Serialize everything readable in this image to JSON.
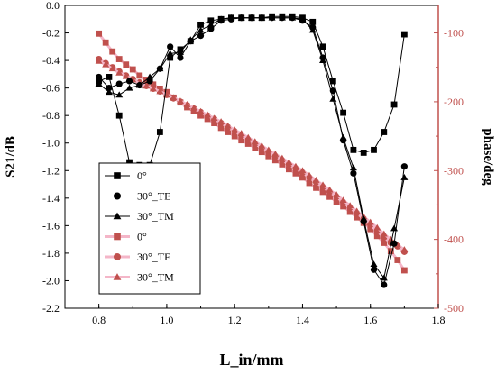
{
  "chart_data": {
    "type": "line",
    "xlabel": "L_in/mm",
    "ylabel_left": "S21/dB",
    "ylabel_right": "phase/deg",
    "xlim": [
      0.7,
      1.8
    ],
    "ylim_left": [
      -2.2,
      0.0
    ],
    "ylim_right": [
      -500,
      -60
    ],
    "x_ticks": [
      "0.8",
      "1.0",
      "1.2",
      "1.4",
      "1.6",
      "1.8"
    ],
    "y_left_ticks": [
      "0.0",
      "-0.2",
      "-0.4",
      "-0.6",
      "-0.8",
      "-1.0",
      "-1.2",
      "-1.4",
      "-1.6",
      "-1.8",
      "-2.0",
      "-2.2"
    ],
    "y_right_ticks": [
      "-100",
      "-200",
      "-300",
      "-400",
      "-500"
    ],
    "legend_position": "lower-left",
    "colors": {
      "s21": "#000000",
      "phase": "#c0504d",
      "phase_line": "#f4b6c8",
      "right_axis": "#c0504d"
    },
    "series": [
      {
        "name": "0°",
        "axis": "left",
        "marker": "square",
        "x": [
          0.8,
          0.83,
          0.86,
          0.89,
          0.92,
          0.95,
          0.98,
          1.01,
          1.04,
          1.07,
          1.1,
          1.13,
          1.16,
          1.19,
          1.22,
          1.25,
          1.28,
          1.31,
          1.34,
          1.37,
          1.4,
          1.43,
          1.46,
          1.49,
          1.52,
          1.55,
          1.58,
          1.61,
          1.64,
          1.67,
          1.7
        ],
        "values": [
          -0.55,
          -0.52,
          -0.8,
          -1.14,
          -1.16,
          -1.16,
          -0.92,
          -0.38,
          -0.32,
          -0.26,
          -0.14,
          -0.11,
          -0.1,
          -0.09,
          -0.09,
          -0.09,
          -0.09,
          -0.08,
          -0.08,
          -0.08,
          -0.09,
          -0.12,
          -0.3,
          -0.55,
          -0.78,
          -1.05,
          -1.07,
          -1.05,
          -0.92,
          -0.72,
          -0.21
        ]
      },
      {
        "name": "30°_TE",
        "axis": "left",
        "marker": "circle",
        "x": [
          0.8,
          0.83,
          0.86,
          0.89,
          0.92,
          0.95,
          0.98,
          1.01,
          1.04,
          1.07,
          1.1,
          1.13,
          1.16,
          1.19,
          1.22,
          1.25,
          1.28,
          1.31,
          1.34,
          1.37,
          1.4,
          1.43,
          1.46,
          1.49,
          1.52,
          1.55,
          1.58,
          1.61,
          1.64,
          1.67,
          1.7
        ],
        "values": [
          -0.52,
          -0.6,
          -0.57,
          -0.55,
          -0.58,
          -0.55,
          -0.46,
          -0.3,
          -0.38,
          -0.26,
          -0.22,
          -0.17,
          -0.11,
          -0.1,
          -0.09,
          -0.09,
          -0.09,
          -0.09,
          -0.09,
          -0.09,
          -0.11,
          -0.16,
          -0.38,
          -0.62,
          -0.98,
          -1.22,
          -1.57,
          -1.92,
          -2.03,
          -1.73,
          -1.17
        ]
      },
      {
        "name": "30°_TM",
        "axis": "left",
        "marker": "triangle",
        "x": [
          0.8,
          0.83,
          0.86,
          0.89,
          0.92,
          0.95,
          0.98,
          1.01,
          1.04,
          1.07,
          1.1,
          1.13,
          1.16,
          1.19,
          1.22,
          1.25,
          1.28,
          1.31,
          1.34,
          1.37,
          1.4,
          1.43,
          1.46,
          1.49,
          1.52,
          1.55,
          1.58,
          1.61,
          1.64,
          1.67,
          1.7
        ],
        "values": [
          -0.57,
          -0.63,
          -0.65,
          -0.6,
          -0.58,
          -0.52,
          -0.46,
          -0.35,
          -0.34,
          -0.25,
          -0.18,
          -0.14,
          -0.1,
          -0.09,
          -0.09,
          -0.09,
          -0.09,
          -0.09,
          -0.09,
          -0.09,
          -0.1,
          -0.18,
          -0.4,
          -0.68,
          -0.96,
          -1.18,
          -1.55,
          -1.88,
          -1.98,
          -1.62,
          -1.25
        ]
      },
      {
        "name": "0°",
        "axis": "right",
        "marker": "square",
        "x": [
          0.8,
          0.82,
          0.84,
          0.86,
          0.88,
          0.9,
          0.92,
          0.94,
          0.96,
          0.98,
          1.0,
          1.02,
          1.04,
          1.06,
          1.08,
          1.1,
          1.12,
          1.14,
          1.16,
          1.18,
          1.2,
          1.22,
          1.24,
          1.26,
          1.28,
          1.3,
          1.32,
          1.34,
          1.36,
          1.38,
          1.4,
          1.42,
          1.44,
          1.46,
          1.48,
          1.5,
          1.52,
          1.54,
          1.56,
          1.58,
          1.6,
          1.62,
          1.64,
          1.66,
          1.68,
          1.7
        ],
        "values": [
          -101,
          -114,
          -127,
          -138,
          -146,
          -153,
          -162,
          -168,
          -175,
          -181,
          -186,
          -194,
          -201,
          -208,
          -214,
          -220,
          -225,
          -231,
          -238,
          -244,
          -250,
          -256,
          -261,
          -267,
          -273,
          -279,
          -285,
          -291,
          -298,
          -304,
          -310,
          -318,
          -325,
          -331,
          -338,
          -345,
          -352,
          -360,
          -368,
          -376,
          -385,
          -395,
          -405,
          -417,
          -430,
          -445
        ]
      },
      {
        "name": "30°_TE",
        "axis": "right",
        "marker": "circle",
        "x": [
          0.8,
          0.82,
          0.84,
          0.86,
          0.88,
          0.9,
          0.92,
          0.94,
          0.96,
          0.98,
          1.0,
          1.02,
          1.04,
          1.06,
          1.08,
          1.1,
          1.12,
          1.14,
          1.16,
          1.18,
          1.2,
          1.22,
          1.24,
          1.26,
          1.28,
          1.3,
          1.32,
          1.34,
          1.36,
          1.38,
          1.4,
          1.42,
          1.44,
          1.46,
          1.48,
          1.5,
          1.52,
          1.54,
          1.56,
          1.58,
          1.6,
          1.62,
          1.64,
          1.66,
          1.68,
          1.7
        ],
        "values": [
          -138,
          -144,
          -150,
          -156,
          -162,
          -167,
          -172,
          -177,
          -181,
          -185,
          -190,
          -195,
          -200,
          -205,
          -210,
          -215,
          -220,
          -225,
          -231,
          -237,
          -243,
          -249,
          -255,
          -261,
          -267,
          -273,
          -279,
          -285,
          -291,
          -297,
          -303,
          -310,
          -317,
          -324,
          -331,
          -338,
          -346,
          -354,
          -362,
          -370,
          -379,
          -388,
          -397,
          -405,
          -410,
          -418
        ]
      },
      {
        "name": "30°_TM",
        "axis": "right",
        "marker": "triangle",
        "x": [
          0.8,
          0.82,
          0.84,
          0.86,
          0.88,
          0.9,
          0.92,
          0.94,
          0.96,
          0.98,
          1.0,
          1.02,
          1.04,
          1.06,
          1.08,
          1.1,
          1.12,
          1.14,
          1.16,
          1.18,
          1.2,
          1.22,
          1.24,
          1.26,
          1.28,
          1.3,
          1.32,
          1.34,
          1.36,
          1.38,
          1.4,
          1.42,
          1.44,
          1.46,
          1.48,
          1.5,
          1.52,
          1.54,
          1.56,
          1.58,
          1.6,
          1.62,
          1.64,
          1.66,
          1.68,
          1.7
        ],
        "values": [
          -141,
          -146,
          -152,
          -158,
          -163,
          -168,
          -173,
          -177,
          -181,
          -185,
          -190,
          -194,
          -199,
          -204,
          -209,
          -214,
          -219,
          -224,
          -229,
          -235,
          -241,
          -246,
          -252,
          -258,
          -264,
          -270,
          -276,
          -282,
          -288,
          -294,
          -300,
          -307,
          -314,
          -321,
          -328,
          -335,
          -343,
          -351,
          -359,
          -367,
          -375,
          -383,
          -392,
          -400,
          -408,
          -415
        ]
      }
    ]
  }
}
